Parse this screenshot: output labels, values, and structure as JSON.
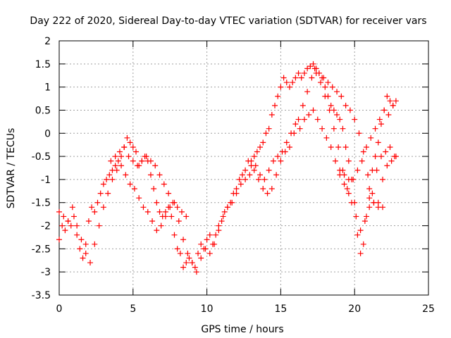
{
  "chart_data": {
    "type": "scatter",
    "title": "Day 222 of 2020, Sidereal Day-to-day VTEC variation (SDTVAR) for receiver vars",
    "xlabel": "GPS time / hours",
    "ylabel": "SDTVAR / TECUs",
    "xlim": [
      0,
      25
    ],
    "ylim": [
      -3.5,
      2
    ],
    "x_ticks": [
      0,
      5,
      10,
      15,
      20,
      25
    ],
    "y_ticks": [
      -3.5,
      -3,
      -2.5,
      -2,
      -1.5,
      -1,
      -0.5,
      0,
      0.5,
      1,
      1.5,
      2
    ],
    "grid": true,
    "marker": "+",
    "series": [
      {
        "color": "#ff0000",
        "x": [
          0.0,
          0.2,
          0.4,
          0.6,
          0.8,
          1.0,
          1.2,
          1.4,
          1.6,
          1.8,
          2.0,
          2.2,
          2.4,
          2.6,
          2.8,
          3.0,
          3.2,
          3.4,
          3.6,
          3.8,
          4.0,
          4.2,
          4.4,
          4.6,
          4.8,
          5.0,
          5.2,
          5.4,
          5.6,
          5.8,
          6.0,
          6.2,
          6.4,
          6.6,
          6.8,
          7.0,
          7.2,
          7.4,
          7.6,
          7.8,
          8.0,
          8.2,
          8.4,
          8.6,
          8.8,
          9.0,
          9.2,
          9.4,
          9.6,
          9.8,
          10.0,
          10.2,
          10.4,
          10.6,
          10.8,
          11.0,
          11.2,
          11.4,
          11.6,
          11.8,
          12.0,
          12.2,
          12.4,
          12.6,
          12.8,
          13.0,
          13.2,
          13.4,
          13.6,
          13.8,
          14.0,
          14.2,
          14.4,
          14.6,
          14.8,
          15.0,
          15.2,
          15.4,
          15.6,
          15.8,
          16.0,
          16.2,
          16.4,
          16.6,
          16.8,
          17.0,
          17.2,
          17.4,
          17.6,
          17.8,
          18.0,
          18.2,
          18.4,
          18.6,
          18.8,
          19.0,
          19.2,
          19.4,
          19.6,
          19.8,
          20.0,
          20.2,
          20.4,
          20.6,
          20.8,
          21.0,
          21.2,
          21.4,
          21.6,
          21.8,
          22.0,
          22.2,
          22.4,
          22.6,
          22.8
        ],
        "y": [
          -2.3,
          -2.0,
          -2.1,
          -1.9,
          -2.0,
          -1.8,
          -2.2,
          -2.5,
          -2.7,
          -2.4,
          -1.9,
          -1.6,
          -1.7,
          -1.5,
          -1.3,
          -1.1,
          -1.0,
          -0.9,
          -0.8,
          -0.7,
          -0.6,
          -0.5,
          -0.3,
          -0.1,
          -0.2,
          -0.3,
          -0.4,
          -0.7,
          -0.6,
          -0.5,
          -0.6,
          -0.9,
          -1.2,
          -1.5,
          -1.7,
          -1.8,
          -1.7,
          -1.6,
          -1.8,
          -2.2,
          -2.5,
          -2.6,
          -2.9,
          -2.8,
          -2.7,
          -2.8,
          -2.9,
          -2.6,
          -2.4,
          -2.5,
          -2.3,
          -2.2,
          -2.4,
          -2.2,
          -2.0,
          -1.9,
          -1.7,
          -1.6,
          -1.5,
          -1.3,
          -1.2,
          -1.0,
          -0.9,
          -0.8,
          -0.6,
          -0.7,
          -0.5,
          -0.4,
          -0.3,
          -0.2,
          0.0,
          0.1,
          0.4,
          0.6,
          0.8,
          1.0,
          1.2,
          1.1,
          1.0,
          1.1,
          1.2,
          1.3,
          1.2,
          1.3,
          1.4,
          1.45,
          1.5,
          1.4,
          1.3,
          1.2,
          1.0,
          0.8,
          0.6,
          0.5,
          0.4,
          0.3,
          0.1,
          -0.3,
          -0.6,
          -1.0,
          -1.5,
          -2.2,
          -2.6,
          -2.4,
          -1.8,
          -1.2,
          -0.8,
          -0.5,
          -0.2,
          0.2,
          0.5,
          0.8,
          0.7,
          0.6,
          0.7
        ],
        "name": ""
      },
      {
        "color": "#ff0000",
        "x": [
          0.0,
          0.3,
          0.6,
          0.9,
          1.2,
          1.5,
          1.8,
          2.1,
          2.4,
          2.7,
          3.0,
          3.3,
          3.6,
          3.9,
          4.2,
          4.5,
          4.8,
          5.1,
          5.4,
          5.7,
          6.0,
          6.3,
          6.6,
          6.9,
          7.2,
          7.5,
          7.8,
          8.1,
          8.4,
          8.7,
          9.0,
          9.3,
          9.6,
          9.9,
          10.2,
          10.5,
          10.8,
          11.1,
          11.4,
          11.7,
          12.0,
          12.3,
          12.6,
          12.9,
          13.2,
          13.5,
          13.8,
          14.1,
          14.4,
          14.7,
          15.0,
          15.3,
          15.6,
          15.9,
          16.2,
          16.5,
          16.8,
          17.1,
          17.4,
          17.7,
          18.0,
          18.3,
          18.6,
          18.9,
          19.2,
          19.5,
          19.8,
          20.1,
          20.4,
          20.7,
          21.0,
          21.3,
          21.6,
          21.9,
          22.2,
          22.5,
          22.8
        ],
        "y": [
          -1.7,
          -1.8,
          -1.9,
          -1.6,
          -2.0,
          -2.3,
          -2.6,
          -2.8,
          -2.4,
          -2.0,
          -1.6,
          -1.3,
          -1.0,
          -0.8,
          -0.7,
          -0.9,
          -1.1,
          -1.2,
          -1.4,
          -1.6,
          -1.7,
          -1.9,
          -2.1,
          -2.0,
          -1.8,
          -1.6,
          -1.5,
          -1.9,
          -2.3,
          -2.6,
          -2.8,
          -3.0,
          -2.7,
          -2.5,
          -2.6,
          -2.4,
          -2.1,
          -1.8,
          -1.6,
          -1.5,
          -1.3,
          -1.1,
          -1.0,
          -0.9,
          -0.8,
          -1.0,
          -1.2,
          -1.3,
          -1.2,
          -0.9,
          -0.6,
          -0.4,
          -0.3,
          0.0,
          0.3,
          0.6,
          0.9,
          1.2,
          1.3,
          1.1,
          0.8,
          0.5,
          0.1,
          -0.3,
          -0.8,
          -1.2,
          -1.5,
          -1.8,
          -2.1,
          -1.9,
          -1.6,
          -1.5,
          -1.6,
          -1.0,
          -0.7,
          -0.6,
          -0.5
        ],
        "name": ""
      },
      {
        "color": "#ff0000",
        "x": [
          3.5,
          3.8,
          4.1,
          4.4,
          4.7,
          5.0,
          5.3,
          5.6,
          5.9,
          6.2,
          6.5,
          6.8,
          7.1,
          7.4,
          7.7,
          8.0,
          8.3,
          8.6,
          13.0,
          13.3,
          13.6,
          13.9,
          14.2,
          14.5,
          14.8,
          15.1,
          15.4,
          15.7,
          16.0,
          16.3,
          16.6,
          16.9,
          17.2,
          17.5,
          17.8,
          18.1,
          18.4,
          18.7,
          19.0,
          19.3,
          19.6,
          19.9,
          20.2,
          20.5,
          20.8,
          21.1,
          21.4,
          21.7,
          22.0,
          22.3,
          22.6
        ],
        "y": [
          -0.6,
          -0.5,
          -0.4,
          -0.3,
          -0.5,
          -0.6,
          -0.7,
          -0.6,
          -0.5,
          -0.6,
          -0.7,
          -0.9,
          -1.1,
          -1.3,
          -1.5,
          -1.6,
          -1.7,
          -1.8,
          -0.6,
          -0.7,
          -0.9,
          -1.0,
          -0.8,
          -0.6,
          -0.5,
          -0.4,
          -0.2,
          0.0,
          0.2,
          0.1,
          0.3,
          0.4,
          0.5,
          0.3,
          0.1,
          -0.1,
          -0.3,
          -0.6,
          -0.9,
          -1.1,
          -1.3,
          -1.0,
          -0.8,
          -0.6,
          -0.3,
          -0.1,
          0.1,
          0.3,
          0.5,
          0.4,
          0.6
        ],
        "name": ""
      },
      {
        "color": "#ff0000",
        "x": [
          17.3,
          17.6,
          17.9,
          18.2,
          18.5,
          18.8,
          19.1,
          19.4,
          19.7,
          20.0,
          20.3,
          20.6,
          20.9,
          21.2,
          21.5,
          21.8,
          22.1,
          22.4,
          22.7,
          19.0,
          19.3,
          19.6,
          21.0,
          21.3,
          21.6,
          21.9
        ],
        "y": [
          1.4,
          1.3,
          1.2,
          1.1,
          1.0,
          0.9,
          0.8,
          0.6,
          0.5,
          0.3,
          0.0,
          -0.4,
          -0.9,
          -1.3,
          -0.8,
          -0.5,
          -0.4,
          -0.3,
          -0.5,
          -0.8,
          -0.9,
          -1.0,
          -1.4,
          -1.5,
          -1.5,
          -1.6
        ],
        "name": ""
      }
    ]
  }
}
